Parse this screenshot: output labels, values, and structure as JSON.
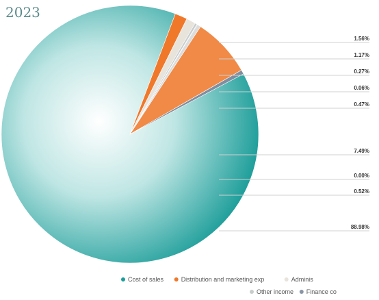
{
  "chart_data": {
    "type": "pie",
    "title": "2023",
    "start_angle_deg": -28,
    "slices": [
      {
        "name": "Cost of sales",
        "label": "88.98%",
        "value": 88.98,
        "color": "#1a9e9a"
      },
      {
        "name": "Distribution and marketing exp",
        "label": "1.56%",
        "value": 1.56,
        "color": "#f0782a"
      },
      {
        "name": "Administrative exp",
        "label": "1.17%",
        "value": 1.17,
        "color": "#e8e4dc"
      },
      {
        "name": "Other income",
        "label": "0.27%",
        "value": 0.27,
        "color": "#c8cccc"
      },
      {
        "name": "Finance cost",
        "label": "0.06%",
        "value": 0.06,
        "color": "#8a96a6"
      },
      {
        "name": "",
        "label": "0.47%",
        "value": 0.47,
        "color": "#dcdcdc"
      },
      {
        "name": "",
        "label": "7.49%",
        "value": 7.49,
        "color": "#f08a46"
      },
      {
        "name": "",
        "label": "0.00%",
        "value": 0.004,
        "color": "#d8d8d8"
      },
      {
        "name": "",
        "label": "0.52%",
        "value": 0.52,
        "color": "#7f8ea0"
      }
    ],
    "legend_position": "bottom",
    "legend": [
      {
        "label": "Cost of sales",
        "color": "#1a9e9a"
      },
      {
        "label": "Distribution and marketing exp",
        "color": "#f0782a"
      },
      {
        "label": "Adminis",
        "color": "#e8e4dc"
      },
      {
        "label": "Other income",
        "color": "#c8cccc"
      },
      {
        "label": "Finance co",
        "color": "#8a96a6"
      }
    ]
  }
}
